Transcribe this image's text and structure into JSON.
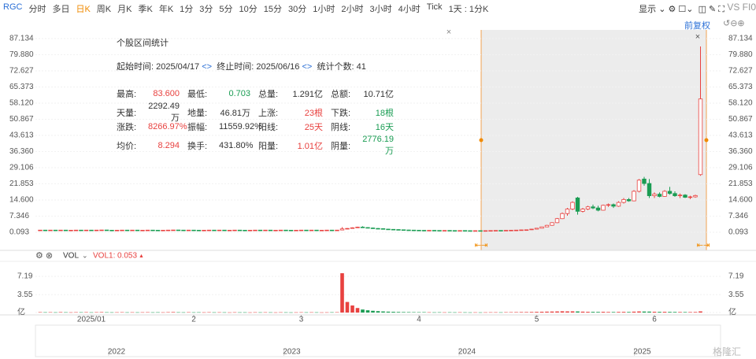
{
  "toolbar": {
    "symbol": "RGC",
    "tabs": [
      "分时",
      "多日",
      "日K",
      "周K",
      "月K",
      "季K",
      "年K",
      "1分",
      "3分",
      "5分",
      "10分",
      "15分",
      "30分",
      "1小时",
      "2小时",
      "3小时",
      "4小时",
      "Tick",
      "1天 : 1分K"
    ],
    "active_tab": 2,
    "display": "显示",
    "compare": "VS FI0",
    "adjust": "前复权"
  },
  "stats": {
    "title": "个股区间统计",
    "start_label": "起始时间:",
    "start": "2025/04/17",
    "end_label": "终止时间:",
    "end": "2025/06/16",
    "count_label": "统计个数:",
    "count": "41",
    "rows": [
      [
        {
          "label": "最高:",
          "value": "83.600",
          "color": "#e8413f"
        },
        {
          "label": "最低:",
          "value": "0.703",
          "color": "#1a9c53"
        },
        {
          "label": "总量:",
          "value": "1.291亿",
          "color": "#333333"
        },
        {
          "label": "总额:",
          "value": "10.71亿",
          "color": "#333333"
        }
      ],
      [
        {
          "label": "天量:",
          "value": "2292.49万",
          "color": "#333333"
        },
        {
          "label": "地量:",
          "value": "46.81万",
          "color": "#333333"
        },
        {
          "label": "上涨:",
          "value": "23根",
          "color": "#e8413f"
        },
        {
          "label": "下跌:",
          "value": "18根",
          "color": "#1a9c53"
        }
      ],
      [
        {
          "label": "涨跌:",
          "value": "8266.97%",
          "color": "#e8413f"
        },
        {
          "label": "振幅:",
          "value": "11559.92%",
          "color": "#333333"
        },
        {
          "label": "阳线:",
          "value": "25天",
          "color": "#e8413f"
        },
        {
          "label": "阴线:",
          "value": "16天",
          "color": "#1a9c53"
        }
      ],
      [
        {
          "label": "均价:",
          "value": "8.294",
          "color": "#e8413f"
        },
        {
          "label": "换手:",
          "value": "431.80%",
          "color": "#333333"
        },
        {
          "label": "阳量:",
          "value": "1.01亿",
          "color": "#e8413f"
        },
        {
          "label": "阴量:",
          "value": "2776.19万",
          "color": "#1a9c53"
        }
      ]
    ]
  },
  "indicator": {
    "name": "VOL",
    "vol1_label": "VOL1:",
    "vol1": 0.053
  },
  "navigator": {
    "years": [
      "2022",
      "2023",
      "2024",
      "2025"
    ]
  },
  "watermark": "格隆汇",
  "chart_data": {
    "type": "candlestick",
    "up_color": "#e8413f",
    "down_color": "#1a9c53",
    "grid": true,
    "ylim": [
      -8.05,
      91.03
    ],
    "yticks": [
      0.093,
      7.346,
      {
        "value": 14.6,
        "label": "14.600"
      },
      21.853,
      29.106,
      {
        "value": 36.36,
        "label": "36.360"
      },
      43.613,
      50.867,
      {
        "value": 58.12,
        "label": "58.120"
      },
      65.373,
      72.627,
      {
        "value": 79.88,
        "label": "79.880"
      },
      87.134
    ],
    "vol_ylim": [
      0,
      8.9
    ],
    "vol_yticks": [
      {
        "value": 0,
        "label": "亿"
      },
      3.55,
      7.19
    ],
    "xticks": [
      {
        "value": 10,
        "label": "2025/01"
      },
      {
        "value": 30,
        "label": "2"
      },
      {
        "value": 51,
        "label": "3"
      },
      {
        "value": 74,
        "label": "4"
      },
      {
        "value": 97,
        "label": "5"
      },
      {
        "value": 120,
        "label": "6"
      }
    ],
    "ohlc": [
      [
        1,
        1.1,
        0.9,
        1.05
      ],
      [
        1.05,
        1.1,
        0.9,
        0.95
      ],
      [
        0.95,
        1.1,
        0.9,
        1.05
      ],
      [
        1.05,
        1.1,
        0.95,
        1
      ],
      [
        1,
        1.1,
        0.9,
        1.05
      ],
      [
        1.05,
        1.1,
        0.9,
        0.95
      ],
      [
        0.95,
        1.05,
        0.9,
        1
      ],
      [
        1,
        1.1,
        0.95,
        1.05
      ],
      [
        1.05,
        1.1,
        0.9,
        0.95
      ],
      [
        0.95,
        1.1,
        0.9,
        1.05
      ],
      [
        1.05,
        1.1,
        0.95,
        1
      ],
      [
        1,
        1.1,
        0.9,
        1.05
      ],
      [
        1.05,
        1.15,
        1,
        1.1
      ],
      [
        1.1,
        1.15,
        0.95,
        1
      ],
      [
        1,
        1.05,
        0.9,
        0.95
      ],
      [
        0.95,
        1.05,
        0.9,
        1
      ],
      [
        1,
        1.1,
        0.95,
        1.05
      ],
      [
        1.05,
        1.1,
        0.95,
        1
      ],
      [
        1,
        1.1,
        0.95,
        1.05
      ],
      [
        1.05,
        1.1,
        0.9,
        0.95
      ],
      [
        0.95,
        1.05,
        0.9,
        1
      ],
      [
        1,
        1.1,
        0.95,
        1.05
      ],
      [
        1.05,
        1.1,
        0.95,
        1
      ],
      [
        1,
        1.05,
        0.9,
        0.95
      ],
      [
        0.95,
        1.05,
        0.9,
        1
      ],
      [
        1,
        1.1,
        0.95,
        1.05
      ],
      [
        1.05,
        1.15,
        1,
        1.1
      ],
      [
        1.1,
        1.15,
        1,
        1.05
      ],
      [
        1.05,
        1.1,
        0.95,
        1
      ],
      [
        1,
        1.1,
        0.95,
        1.05
      ],
      [
        1.05,
        1.1,
        0.95,
        1
      ],
      [
        1,
        1.05,
        0.9,
        0.95
      ],
      [
        0.95,
        1.05,
        0.9,
        1
      ],
      [
        1,
        1.1,
        0.95,
        1.05
      ],
      [
        1.05,
        1.1,
        0.95,
        1
      ],
      [
        1,
        1.1,
        0.95,
        1.05
      ],
      [
        1.05,
        1.1,
        0.9,
        0.95
      ],
      [
        0.95,
        1.05,
        0.9,
        1
      ],
      [
        1,
        1.1,
        0.95,
        1.05
      ],
      [
        1.05,
        1.1,
        0.95,
        1
      ],
      [
        1,
        1.05,
        0.9,
        0.95
      ],
      [
        0.95,
        1.05,
        0.9,
        1
      ],
      [
        1,
        1.1,
        0.95,
        1.05
      ],
      [
        1.05,
        1.1,
        0.95,
        1
      ],
      [
        1,
        1.1,
        0.95,
        1.05
      ],
      [
        1.05,
        1.1,
        0.9,
        0.95
      ],
      [
        0.95,
        1.05,
        0.9,
        1
      ],
      [
        1,
        1.1,
        0.95,
        1.05
      ],
      [
        1.05,
        1.1,
        0.95,
        1
      ],
      [
        1,
        1.05,
        0.9,
        0.95
      ],
      [
        0.95,
        1.05,
        0.9,
        1
      ],
      [
        1,
        1.1,
        0.95,
        1.05
      ],
      [
        1.05,
        1.1,
        0.95,
        1
      ],
      [
        1,
        1.1,
        0.95,
        1.05
      ],
      [
        1.05,
        1.1,
        0.9,
        0.95
      ],
      [
        0.95,
        1.05,
        0.9,
        1
      ],
      [
        1,
        1.1,
        0.95,
        1.05
      ],
      [
        1.05,
        1.1,
        0.95,
        1
      ],
      [
        1,
        1.1,
        0.95,
        1.05
      ],
      [
        1.1,
        2.4,
        1.05,
        1.6
      ],
      [
        1.6,
        2,
        1.4,
        1.8
      ],
      [
        1.8,
        2.3,
        1.7,
        2.1
      ],
      [
        2.1,
        2.6,
        2,
        2.4
      ],
      [
        2.4,
        2.8,
        2.1,
        2.2
      ],
      [
        2.2,
        2.4,
        1.9,
        2
      ],
      [
        2,
        2.2,
        1.7,
        1.8
      ],
      [
        1.8,
        2,
        1.6,
        1.7
      ],
      [
        1.7,
        1.8,
        1.4,
        1.5
      ],
      [
        1.5,
        1.6,
        1.3,
        1.4
      ],
      [
        1.4,
        1.5,
        1.2,
        1.3
      ],
      [
        1.3,
        1.4,
        1.1,
        1.2
      ],
      [
        1.2,
        1.3,
        1.05,
        1.1
      ],
      [
        1.1,
        1.2,
        1,
        1.05
      ],
      [
        1.05,
        1.15,
        0.95,
        1
      ],
      [
        1,
        1.1,
        0.9,
        0.95
      ],
      [
        0.95,
        1.05,
        0.85,
        0.9
      ],
      [
        0.9,
        1,
        0.85,
        0.95
      ],
      [
        0.95,
        1,
        0.85,
        0.9
      ],
      [
        0.9,
        0.95,
        0.8,
        0.85
      ],
      [
        0.85,
        0.95,
        0.8,
        0.9
      ],
      [
        0.9,
        0.95,
        0.8,
        0.85
      ],
      [
        0.85,
        0.9,
        0.75,
        0.8
      ],
      [
        0.8,
        0.9,
        0.75,
        0.85
      ],
      [
        0.85,
        0.9,
        0.75,
        0.8
      ],
      [
        0.8,
        0.85,
        0.72,
        0.78
      ],
      [
        0.78,
        0.85,
        0.72,
        0.8
      ],
      [
        0.8,
        0.85,
        0.74,
        0.76
      ],
      [
        0.76,
        0.82,
        0.703,
        0.8
      ],
      [
        0.8,
        0.9,
        0.75,
        0.85
      ],
      [
        0.85,
        0.95,
        0.8,
        0.9
      ],
      [
        0.9,
        0.95,
        0.8,
        0.85
      ],
      [
        0.85,
        1,
        0.8,
        0.95
      ],
      [
        0.95,
        1.05,
        0.9,
        1
      ],
      [
        1,
        1.1,
        0.95,
        1.05
      ],
      [
        1.05,
        1.2,
        1,
        1.15
      ],
      [
        1.15,
        1.3,
        1.1,
        1.2
      ],
      [
        1.2,
        1.6,
        1.1,
        1.5
      ],
      [
        1.5,
        2,
        1.4,
        1.9
      ],
      [
        1.9,
        2.6,
        1.8,
        2.5
      ],
      [
        2.5,
        3.4,
        2.4,
        3.2
      ],
      [
        3.2,
        4.6,
        3,
        4.4
      ],
      [
        4.4,
        6.5,
        4.2,
        6.2
      ],
      [
        6.2,
        9,
        6,
        8.5
      ],
      [
        8.5,
        11,
        7.5,
        10.5
      ],
      [
        10.5,
        14,
        10,
        13.5
      ],
      [
        15.5,
        16,
        8,
        9.5
      ],
      [
        9.5,
        11,
        9,
        10.5
      ],
      [
        10.5,
        12,
        10,
        11.5
      ],
      [
        11.5,
        12.5,
        10.5,
        11
      ],
      [
        11,
        12,
        9.5,
        10
      ],
      [
        10,
        12.5,
        9.8,
        12.2
      ],
      [
        12.2,
        13,
        11.5,
        12.5
      ],
      [
        12.5,
        13,
        11,
        11.8
      ],
      [
        11.8,
        14,
        11.5,
        13.5
      ],
      [
        13.5,
        15.5,
        13,
        14.8
      ],
      [
        14.8,
        15.5,
        13.8,
        14.2
      ],
      [
        14.2,
        19,
        14,
        18.5
      ],
      [
        18.5,
        24,
        18,
        23.5
      ],
      [
        24,
        25,
        21,
        22
      ],
      [
        22,
        24,
        15.5,
        16.5
      ],
      [
        16.5,
        18,
        15.5,
        17.2
      ],
      [
        17.2,
        18,
        15.8,
        16.2
      ],
      [
        16.2,
        19,
        16,
        18.5
      ],
      [
        18.5,
        20.5,
        17,
        17.5
      ],
      [
        17.5,
        18.5,
        16,
        16.5
      ],
      [
        16.5,
        17.5,
        15.5,
        16.8
      ],
      [
        16.8,
        17.2,
        15.5,
        15.8
      ],
      [
        15.8,
        16.5,
        15,
        16
      ],
      [
        16,
        17,
        15.6,
        16.6
      ],
      [
        26,
        83.6,
        25.5,
        60
      ]
    ],
    "volume": [
      0.08,
      0.06,
      0.07,
      0.05,
      0.09,
      0.06,
      0.05,
      0.07,
      0.06,
      0.08,
      0.05,
      0.07,
      0.09,
      0.06,
      0.05,
      0.06,
      0.07,
      0.05,
      0.06,
      0.05,
      0.06,
      0.07,
      0.05,
      0.06,
      0.05,
      0.08,
      0.1,
      0.06,
      0.05,
      0.07,
      0.05,
      0.06,
      0.05,
      0.07,
      0.05,
      0.06,
      0.05,
      0.04,
      0.06,
      0.05,
      0.05,
      0.04,
      0.06,
      0.05,
      0.06,
      0.05,
      0.04,
      0.06,
      0.05,
      0.04,
      0.05,
      0.06,
      0.05,
      0.06,
      0.05,
      0.04,
      0.05,
      0.06,
      0.07,
      7.8,
      2.1,
      1.4,
      0.9,
      0.6,
      0.45,
      0.35,
      0.28,
      0.22,
      0.18,
      0.15,
      0.12,
      0.1,
      0.09,
      0.08,
      0.07,
      0.08,
      0.06,
      0.05,
      0.06,
      0.05,
      0.06,
      0.05,
      0.06,
      0.05,
      0.04,
      0.05,
      0.04,
      0.05,
      0.06,
      0.06,
      0.05,
      0.07,
      0.08,
      0.09,
      0.1,
      0.1,
      0.12,
      0.14,
      0.16,
      0.18,
      0.2,
      0.22,
      0.25,
      0.23,
      0.24,
      0.22,
      0.18,
      0.15,
      0.14,
      0.13,
      0.15,
      0.12,
      0.11,
      0.13,
      0.14,
      0.12,
      0.18,
      0.22,
      0.2,
      0.19,
      0.16,
      0.14,
      0.15,
      0.13,
      0.12,
      0.11,
      0.1,
      0.1,
      0.11,
      0.23
    ]
  }
}
